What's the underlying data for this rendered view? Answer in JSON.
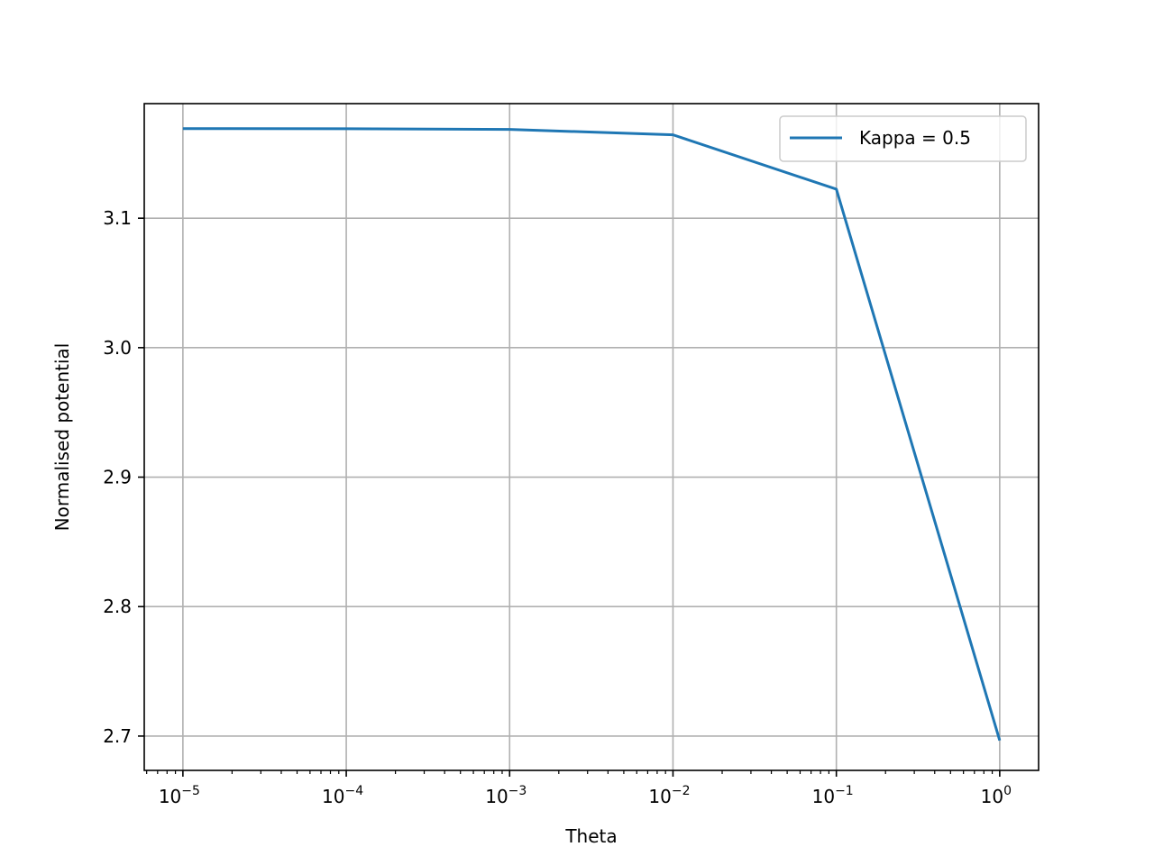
{
  "chart_data": {
    "type": "line",
    "xlabel": "Theta",
    "ylabel": "Normalised potential",
    "xscale": "log",
    "xlim": [
      5.8e-06,
      1.73
    ],
    "ylim": [
      2.6735,
      3.1885
    ],
    "grid": true,
    "legend_position": "top-right",
    "x_ticks": [
      {
        "value": 1e-05,
        "base": "10",
        "exp": "−5"
      },
      {
        "value": 0.0001,
        "base": "10",
        "exp": "−4"
      },
      {
        "value": 0.001,
        "base": "10",
        "exp": "−3"
      },
      {
        "value": 0.01,
        "base": "10",
        "exp": "−2"
      },
      {
        "value": 0.1,
        "base": "10",
        "exp": "−1"
      },
      {
        "value": 1,
        "base": "10",
        "exp": "0"
      }
    ],
    "y_ticks": [
      {
        "value": 2.7,
        "label": "2.7"
      },
      {
        "value": 2.8,
        "label": "2.8"
      },
      {
        "value": 2.9,
        "label": "2.9"
      },
      {
        "value": 3.0,
        "label": "3.0"
      },
      {
        "value": 3.1,
        "label": "3.1"
      }
    ],
    "series": [
      {
        "name": "Kappa = 0.5",
        "color": "#1f77b4",
        "x": [
          1e-05,
          0.0001,
          0.001,
          0.01,
          0.1,
          1
        ],
        "y": [
          3.1692,
          3.1691,
          3.1686,
          3.1644,
          3.1224,
          2.6966
        ]
      }
    ]
  }
}
